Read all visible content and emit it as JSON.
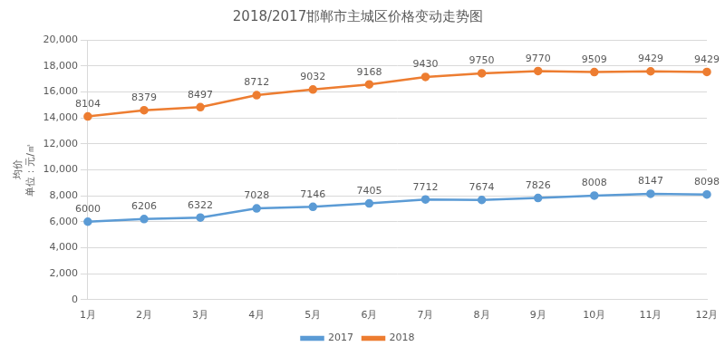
{
  "chart_data": {
    "type": "line",
    "title": "2018/2017邯郸市主城区价格变动走势图",
    "y_label": [
      "均价",
      "单位：元/㎡"
    ],
    "categories": [
      "1月",
      "2月",
      "3月",
      "4月",
      "5月",
      "6月",
      "7月",
      "8月",
      "9月",
      "10月",
      "11月",
      "12月"
    ],
    "series": [
      {
        "name": "2017",
        "color": "#5b9bd5",
        "values": [
          6000,
          6206,
          6322,
          7028,
          7146,
          7405,
          7712,
          7674,
          7826,
          8008,
          8147,
          8098
        ]
      },
      {
        "name": "2018",
        "color": "#ed7d31",
        "values": [
          8104,
          8379,
          8497,
          8712,
          9032,
          9168,
          9430,
          9750,
          9770,
          9509,
          9429,
          9429
        ]
      }
    ],
    "stacked": true,
    "ylim": [
      0,
      20000
    ],
    "yticks": [
      0,
      2000,
      4000,
      6000,
      8000,
      10000,
      12000,
      14000,
      16000,
      18000,
      20000
    ],
    "grid": true,
    "legend": "bottom",
    "data_labels": true,
    "marker": "circle",
    "line_style": "solid"
  }
}
